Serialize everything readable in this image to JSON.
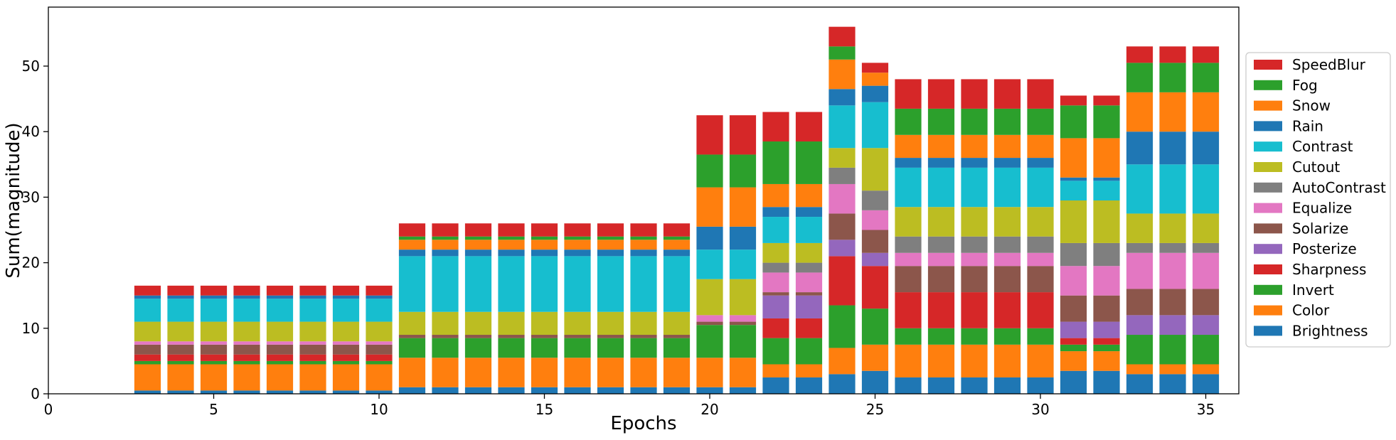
{
  "chart_data": {
    "type": "bar",
    "stacked": true,
    "xlabel": "Epochs",
    "ylabel": "Sum(magnitude)",
    "xlim": [
      0,
      36
    ],
    "ylim": [
      0,
      59
    ],
    "xticks": [
      0,
      5,
      10,
      15,
      20,
      25,
      30,
      35
    ],
    "yticks": [
      0,
      10,
      20,
      30,
      40,
      50
    ],
    "grid": false,
    "legend_position": "right",
    "x": [
      3,
      4,
      5,
      6,
      7,
      8,
      9,
      10,
      11,
      12,
      13,
      14,
      15,
      16,
      17,
      18,
      19,
      20,
      21,
      22,
      23,
      24,
      25,
      26,
      27,
      28,
      29,
      30,
      31,
      32,
      33,
      34,
      35
    ],
    "series": [
      {
        "name": "Brightness",
        "color": "#1f77b4",
        "values": [
          0.5,
          0.5,
          0.5,
          0.5,
          0.5,
          0.5,
          0.5,
          0.5,
          1,
          1,
          1,
          1,
          1,
          1,
          1,
          1,
          1,
          1,
          1,
          2.5,
          2.5,
          3,
          3.5,
          2.5,
          2.5,
          2.5,
          2.5,
          2.5,
          3.5,
          3.5,
          3,
          3,
          3
        ]
      },
      {
        "name": "Color",
        "color": "#ff7f0e",
        "values": [
          4,
          4,
          4,
          4,
          4,
          4,
          4,
          4,
          4.5,
          4.5,
          4.5,
          4.5,
          4.5,
          4.5,
          4.5,
          4.5,
          4.5,
          4.5,
          4.5,
          2,
          2,
          4,
          4,
          5,
          5,
          5,
          5,
          5,
          3,
          3,
          1.5,
          1.5,
          1.5
        ]
      },
      {
        "name": "Invert",
        "color": "#2ca02c",
        "values": [
          0.5,
          0.5,
          0.5,
          0.5,
          0.5,
          0.5,
          0.5,
          0.5,
          3,
          3,
          3,
          3,
          3,
          3,
          3,
          3,
          3,
          5,
          5,
          4,
          4,
          6.5,
          5.5,
          2.5,
          2.5,
          2.5,
          2.5,
          2.5,
          1,
          1,
          4.5,
          4.5,
          4.5
        ]
      },
      {
        "name": "Sharpness",
        "color": "#d62728",
        "values": [
          1,
          1,
          1,
          1,
          1,
          1,
          1,
          1,
          0,
          0,
          0,
          0,
          0,
          0,
          0,
          0,
          0,
          0,
          0,
          3,
          3,
          7.5,
          6.5,
          5.5,
          5.5,
          5.5,
          5.5,
          5.5,
          1,
          1,
          0,
          0,
          0
        ]
      },
      {
        "name": "Posterize",
        "color": "#9467bd",
        "values": [
          0,
          0,
          0,
          0,
          0,
          0,
          0,
          0,
          0,
          0,
          0,
          0,
          0,
          0,
          0,
          0,
          0,
          0,
          0,
          3.5,
          3.5,
          2.5,
          2,
          0,
          0,
          0,
          0,
          0,
          2.5,
          2.5,
          3,
          3,
          3
        ]
      },
      {
        "name": "Solarize",
        "color": "#8c564b",
        "values": [
          1.5,
          1.5,
          1.5,
          1.5,
          1.5,
          1.5,
          1.5,
          1.5,
          0.5,
          0.5,
          0.5,
          0.5,
          0.5,
          0.5,
          0.5,
          0.5,
          0.5,
          0.5,
          0.5,
          0.5,
          0.5,
          4,
          3.5,
          4,
          4,
          4,
          4,
          4,
          4,
          4,
          4,
          4,
          4
        ]
      },
      {
        "name": "Equalize",
        "color": "#e377c2",
        "values": [
          0.5,
          0.5,
          0.5,
          0.5,
          0.5,
          0.5,
          0.5,
          0.5,
          0,
          0,
          0,
          0,
          0,
          0,
          0,
          0,
          0,
          1,
          1,
          3,
          3,
          4.5,
          3,
          2,
          2,
          2,
          2,
          2,
          4.5,
          4.5,
          5.5,
          5.5,
          5.5
        ]
      },
      {
        "name": "AutoContrast",
        "color": "#7f7f7f",
        "values": [
          0,
          0,
          0,
          0,
          0,
          0,
          0,
          0,
          0,
          0,
          0,
          0,
          0,
          0,
          0,
          0,
          0,
          0,
          0,
          1.5,
          1.5,
          2.5,
          3,
          2.5,
          2.5,
          2.5,
          2.5,
          2.5,
          3.5,
          3.5,
          1.5,
          1.5,
          1.5
        ]
      },
      {
        "name": "Cutout",
        "color": "#bcbd22",
        "values": [
          3,
          3,
          3,
          3,
          3,
          3,
          3,
          3,
          3.5,
          3.5,
          3.5,
          3.5,
          3.5,
          3.5,
          3.5,
          3.5,
          3.5,
          5.5,
          5.5,
          3,
          3,
          3,
          6.5,
          4.5,
          4.5,
          4.5,
          4.5,
          4.5,
          6.5,
          6.5,
          4.5,
          4.5,
          4.5
        ]
      },
      {
        "name": "Contrast",
        "color": "#17becf",
        "values": [
          3.5,
          3.5,
          3.5,
          3.5,
          3.5,
          3.5,
          3.5,
          3.5,
          8.5,
          8.5,
          8.5,
          8.5,
          8.5,
          8.5,
          8.5,
          8.5,
          8.5,
          4.5,
          4.5,
          4,
          4,
          6.5,
          7,
          6,
          6,
          6,
          6,
          6,
          3,
          3,
          7.5,
          7.5,
          7.5
        ]
      },
      {
        "name": "Rain",
        "color": "#1f77b4",
        "values": [
          0.5,
          0.5,
          0.5,
          0.5,
          0.5,
          0.5,
          0.5,
          0.5,
          1,
          1,
          1,
          1,
          1,
          1,
          1,
          1,
          1,
          3.5,
          3.5,
          1.5,
          1.5,
          2.5,
          2.5,
          1.5,
          1.5,
          1.5,
          1.5,
          1.5,
          0.5,
          0.5,
          5,
          5,
          5
        ]
      },
      {
        "name": "Snow",
        "color": "#ff7f0e",
        "values": [
          0,
          0,
          0,
          0,
          0,
          0,
          0,
          0,
          1.5,
          1.5,
          1.5,
          1.5,
          1.5,
          1.5,
          1.5,
          1.5,
          1.5,
          6,
          6,
          3.5,
          3.5,
          4.5,
          2,
          3.5,
          3.5,
          3.5,
          3.5,
          3.5,
          6,
          6,
          6,
          6,
          6
        ]
      },
      {
        "name": "Fog",
        "color": "#2ca02c",
        "values": [
          0,
          0,
          0,
          0,
          0,
          0,
          0,
          0,
          0.5,
          0.5,
          0.5,
          0.5,
          0.5,
          0.5,
          0.5,
          0.5,
          0.5,
          5,
          5,
          6.5,
          6.5,
          2,
          0,
          4,
          4,
          4,
          4,
          4,
          5,
          5,
          4.5,
          4.5,
          4.5
        ]
      },
      {
        "name": "SpeedBlur",
        "color": "#d62728",
        "values": [
          1.5,
          1.5,
          1.5,
          1.5,
          1.5,
          1.5,
          1.5,
          1.5,
          2,
          2,
          2,
          2,
          2,
          2,
          2,
          2,
          2,
          6,
          6,
          4.5,
          4.5,
          3,
          1.5,
          4.5,
          4.5,
          4.5,
          4.5,
          4.5,
          1.5,
          1.5,
          2.5,
          2.5,
          2.5
        ]
      }
    ]
  }
}
